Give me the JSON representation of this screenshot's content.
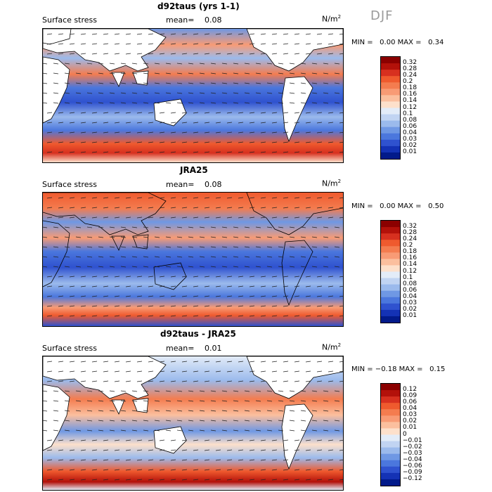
{
  "season": "DJF",
  "chart_data": [
    {
      "type": "heatmap",
      "title": "d92taus (yrs 1-1)",
      "variable": "Surface stress",
      "mean_label": "mean=",
      "mean_value": "0.08",
      "units": "N/m",
      "units_sup": "2",
      "min_label": "MIN =",
      "min_value": "0.00",
      "max_label": "MAX =",
      "max_value": "0.34",
      "colorbar_ticks": [
        "0.32",
        "0.28",
        "0.24",
        "0.2",
        "0.18",
        "0.16",
        "0.14",
        "0.12",
        "0.1",
        "0.08",
        "0.06",
        "0.04",
        "0.03",
        "0.02",
        "0.01"
      ],
      "colorbar_colors": [
        "#8b0000",
        "#b3110a",
        "#d7301f",
        "#ef5a2e",
        "#f47c4f",
        "#f89b75",
        "#fbbf9e",
        "#fde0cb",
        "#e3ecf8",
        "#c1d4f2",
        "#9bbaec",
        "#6f98e4",
        "#4b77dd",
        "#2f52cf",
        "#1432b5",
        "#021a8a"
      ]
    },
    {
      "type": "heatmap",
      "title": "JRA25",
      "variable": "Surface stress",
      "mean_label": "mean=",
      "mean_value": "0.08",
      "units": "N/m",
      "units_sup": "2",
      "min_label": "MIN =",
      "min_value": "0.00",
      "max_label": "MAX =",
      "max_value": "0.50",
      "colorbar_ticks": [
        "0.32",
        "0.28",
        "0.24",
        "0.2",
        "0.18",
        "0.16",
        "0.14",
        "0.12",
        "0.1",
        "0.08",
        "0.06",
        "0.04",
        "0.03",
        "0.02",
        "0.01"
      ],
      "colorbar_colors": [
        "#8b0000",
        "#b3110a",
        "#d7301f",
        "#ef5a2e",
        "#f47c4f",
        "#f89b75",
        "#fbbf9e",
        "#fde0cb",
        "#e3ecf8",
        "#c1d4f2",
        "#9bbaec",
        "#6f98e4",
        "#4b77dd",
        "#2f52cf",
        "#1432b5",
        "#021a8a"
      ]
    },
    {
      "type": "heatmap",
      "title": "d92taus - JRA25",
      "variable": "Surface stress",
      "mean_label": "mean=",
      "mean_value": "0.01",
      "units": "N/m",
      "units_sup": "2",
      "min_label": "MIN =",
      "min_value": "−0.18",
      "max_label": "MAX =",
      "max_value": "0.15",
      "colorbar_ticks": [
        "0.12",
        "0.09",
        "0.06",
        "0.04",
        "0.03",
        "0.02",
        "0.01",
        "0",
        "−0.01",
        "−0.02",
        "−0.03",
        "−0.04",
        "−0.06",
        "−0.09",
        "−0.12"
      ],
      "colorbar_colors": [
        "#8b0000",
        "#b3110a",
        "#d7301f",
        "#ef5a2e",
        "#f47c4f",
        "#f89b75",
        "#fbbf9e",
        "#fde0cb",
        "#e3ecf8",
        "#c1d4f2",
        "#9bbaec",
        "#6f98e4",
        "#4b77dd",
        "#2f52cf",
        "#1432b5",
        "#021a8a"
      ]
    }
  ]
}
